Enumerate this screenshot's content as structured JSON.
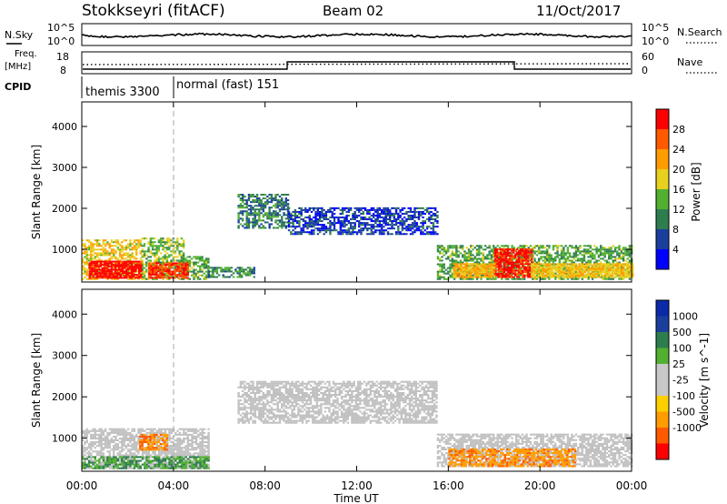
{
  "header": {
    "radar": "Stokkseyri (fitACF)",
    "beam": "Beam 02",
    "date": "11/Oct/2017"
  },
  "nsky_panel": {
    "left_label": "N.Sky",
    "right_label": "N.Search",
    "left_ticks": [
      "10^5",
      "10^0"
    ],
    "right_ticks": [
      "10^5",
      "10^0"
    ]
  },
  "freq_panel": {
    "left_label_1": "Freq.",
    "left_label_2": "[MHz]",
    "right_label": "Nave",
    "left_ticks": [
      "18",
      "8"
    ],
    "right_ticks": [
      "60",
      "0"
    ]
  },
  "cpid": {
    "label": "CPID",
    "modes": [
      {
        "name": "themis 3300",
        "start_hour": 0.0
      },
      {
        "name": "normal (fast) 151",
        "start_hour": 4.0
      }
    ]
  },
  "colors": {
    "power_scale": [
      "#0000ff",
      "#1a3f9c",
      "#2e7d4f",
      "#52b030",
      "#e8d020",
      "#ff9d00",
      "#ff5a00",
      "#ff0000"
    ],
    "velocity_scale": [
      "#ff0000",
      "#ff5a00",
      "#ff9d00",
      "#ffd000",
      "#c8c8c8",
      "#c8c8c8",
      "#52b030",
      "#2e7d4f",
      "#1a3f9c",
      "#0a2aa8"
    ],
    "ground_scatter": "#c0c0c0"
  },
  "chart_data": [
    {
      "type": "heatmap",
      "panel": "power",
      "title": "",
      "xlabel": "Time UT",
      "ylabel": "Slant Range [km]",
      "xlim": [
        0,
        24
      ],
      "ylim": [
        200,
        4600
      ],
      "x_ticks": [
        "00:00",
        "04:00",
        "08:00",
        "12:00",
        "16:00",
        "20:00",
        "00:00"
      ],
      "y_ticks": [
        "1000",
        "2000",
        "3000",
        "4000"
      ],
      "colorbar": {
        "label": "Power [dB]",
        "ticks": [
          "4",
          "8",
          "12",
          "16",
          "20",
          "24",
          "28"
        ],
        "range": [
          0,
          30
        ]
      },
      "regions": [
        {
          "t0": 0.0,
          "t1": 2.6,
          "r0": 250,
          "r1": 1200,
          "level": 18
        },
        {
          "t0": 2.6,
          "t1": 4.4,
          "r0": 250,
          "r1": 1250,
          "level": 14
        },
        {
          "t0": 4.4,
          "t1": 5.5,
          "r0": 250,
          "r1": 800,
          "level": 12
        },
        {
          "t0": 5.5,
          "t1": 7.5,
          "r0": 300,
          "r1": 550,
          "level": 10
        },
        {
          "t0": 6.8,
          "t1": 9.0,
          "r0": 1500,
          "r1": 2350,
          "level": 9
        },
        {
          "t0": 9.0,
          "t1": 15.5,
          "r0": 1350,
          "r1": 2000,
          "level": 5
        },
        {
          "t0": 15.5,
          "t1": 24.0,
          "r0": 250,
          "r1": 1100,
          "level": 12
        }
      ],
      "cores": [
        {
          "t0": 0.3,
          "t1": 2.6,
          "r0": 280,
          "r1": 700,
          "level": 28
        },
        {
          "t0": 2.9,
          "t1": 4.6,
          "r0": 280,
          "r1": 650,
          "level": 26
        },
        {
          "t0": 18.0,
          "t1": 19.6,
          "r0": 300,
          "r1": 1000,
          "level": 27
        },
        {
          "t0": 16.2,
          "t1": 18.0,
          "r0": 300,
          "r1": 650,
          "level": 20
        },
        {
          "t0": 19.6,
          "t1": 24.0,
          "r0": 300,
          "r1": 650,
          "level": 18
        }
      ]
    },
    {
      "type": "heatmap",
      "panel": "velocity",
      "title": "",
      "xlabel": "Time UT",
      "ylabel": "Slant Range [km]",
      "xlim": [
        0,
        24
      ],
      "ylim": [
        200,
        4600
      ],
      "x_ticks": [
        "00:00",
        "04:00",
        "08:00",
        "12:00",
        "16:00",
        "20:00",
        "00:00"
      ],
      "y_ticks": [
        "1000",
        "2000",
        "3000",
        "4000"
      ],
      "colorbar": {
        "label": "Velocity [m s^-1]",
        "ticks": [
          "1000",
          "500",
          "100",
          "25",
          "-25",
          "-100",
          "-500",
          "-1000"
        ]
      },
      "regions": [
        {
          "t0": 0.0,
          "t1": 5.5,
          "r0": 250,
          "r1": 1200,
          "kind": "gs"
        },
        {
          "t0": 0.0,
          "t1": 5.5,
          "r0": 250,
          "r1": 550,
          "kind": "pos"
        },
        {
          "t0": 2.5,
          "t1": 3.7,
          "r0": 700,
          "r1": 1100,
          "kind": "neg"
        },
        {
          "t0": 6.8,
          "t1": 15.5,
          "r0": 1350,
          "r1": 2350,
          "kind": "gs"
        },
        {
          "t0": 15.5,
          "t1": 24.0,
          "r0": 300,
          "r1": 1100,
          "kind": "gs"
        },
        {
          "t0": 16.0,
          "t1": 21.5,
          "r0": 300,
          "r1": 750,
          "kind": "neg"
        }
      ]
    }
  ]
}
